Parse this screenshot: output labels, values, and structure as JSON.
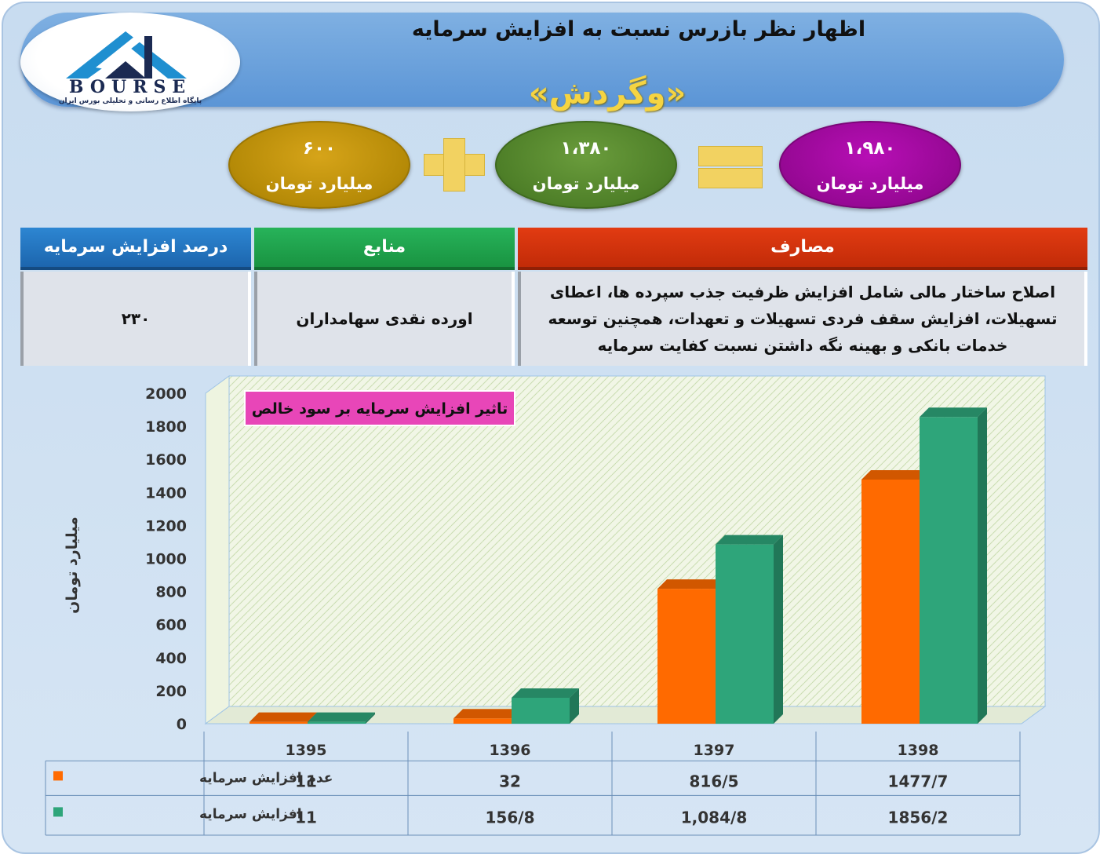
{
  "header": {
    "title": "اظهار نظر بازرس نسبت به افزایش سرمایه",
    "subtitle": "«وگردش»",
    "logo_text": "BOURSE",
    "logo_caption": "پایگاه اطلاع رسانی و تحلیلی بورس ایران"
  },
  "formula": {
    "left": {
      "amount": "۶۰۰",
      "unit": "میلیارد تومان"
    },
    "middle": {
      "amount": "۱،۳۸۰",
      "unit": "میلیارد تومان"
    },
    "right": {
      "amount": "۱،۹۸۰",
      "unit": "میلیارد تومان"
    },
    "colors": {
      "left": "#b58a07",
      "middle": "#4e7f28",
      "right": "#960894",
      "operator": "#f2d261"
    }
  },
  "info_table": {
    "headers": {
      "percent": "درصد افزایش سرمایه",
      "sources": "منابع",
      "uses": "مصارف"
    },
    "values": {
      "percent": "۲۳۰",
      "sources": "اورده نقدی سهامداران",
      "uses": "اصلاح ساختار مالی شامل افزایش ظرفیت جذب سپرده ها، اعطای تسهیلات، افزایش سقف فردی تسهیلات و تعهدات، همچنین توسعه خدمات بانکی و بهینه نگه داشتن نسبت کفایت سرمایه"
    }
  },
  "chart_data": {
    "type": "bar",
    "title": "تاثیر افزایش سرمایه بر سود خالص",
    "ylabel": "میلیارد تومان",
    "xlabel": "",
    "ylim": [
      0,
      2000
    ],
    "yticks": [
      0,
      200,
      400,
      600,
      800,
      1000,
      1200,
      1400,
      1600,
      1800,
      2000
    ],
    "categories": [
      "1395",
      "1396",
      "1397",
      "1398"
    ],
    "series": [
      {
        "name": "عدم افزایش سرمایه",
        "values": [
          11,
          32,
          816.5,
          1477.7
        ],
        "labels": [
          "11",
          "32",
          "816/5",
          "1477/7"
        ],
        "color": "#ff6a00"
      },
      {
        "name": "افزایش سرمایه",
        "values": [
          11,
          156.8,
          1084.8,
          1856.2
        ],
        "labels": [
          "11",
          "156/8",
          "1,084/8",
          "1856/2"
        ],
        "color": "#2ea57a"
      }
    ],
    "grid": true,
    "legend": "data-table"
  }
}
